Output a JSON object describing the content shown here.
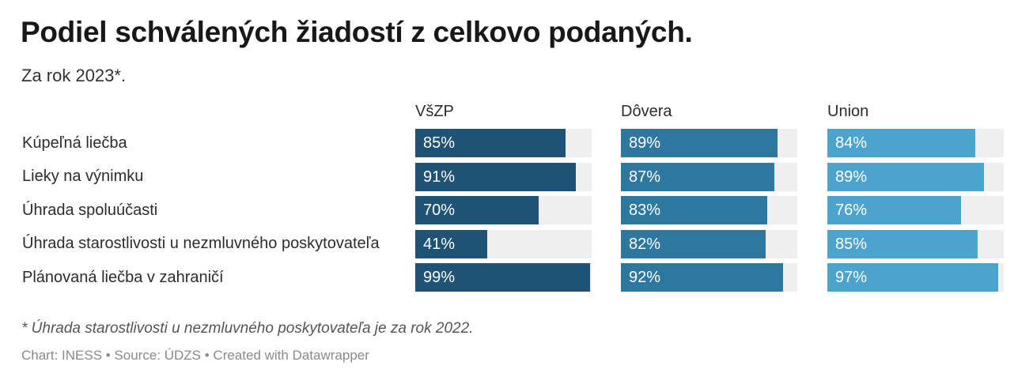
{
  "title": "Podiel schválených žiadostí z celkovo podaných.",
  "subtitle": "Za rok 2023*.",
  "footnote": "* Úhrada starostlivosti u nezmluvného poskytovateľa je za rok 2022.",
  "credits": "Chart: INESS • Source: ÚDZS • Created with Datawrapper",
  "chart_data": {
    "type": "bar",
    "orientation": "horizontal",
    "layout": "small-multiples",
    "categories": [
      "Kúpeľná liečba",
      "Lieky na výnimku",
      "Úhrada spoluúčasti",
      "Úhrada starostlivosti u nezmluvného poskytovateľa",
      "Plánovaná liečba v zahraničí"
    ],
    "xlim": [
      0,
      100
    ],
    "series": [
      {
        "name": "VšZP",
        "color": "#1f5376",
        "values": [
          85,
          91,
          70,
          41,
          99
        ],
        "labels": [
          "85%",
          "91%",
          "70%",
          "41%",
          "99%"
        ]
      },
      {
        "name": "Dôvera",
        "color": "#2e789f",
        "values": [
          89,
          87,
          83,
          82,
          92
        ],
        "labels": [
          "89%",
          "87%",
          "83%",
          "82%",
          "92%"
        ]
      },
      {
        "name": "Union",
        "color": "#4ba3ce",
        "values": [
          84,
          89,
          76,
          85,
          97
        ],
        "labels": [
          "84%",
          "89%",
          "76%",
          "85%",
          "97%"
        ]
      }
    ],
    "track_color": "#efefef",
    "grid": false,
    "legend": "column-headers"
  }
}
